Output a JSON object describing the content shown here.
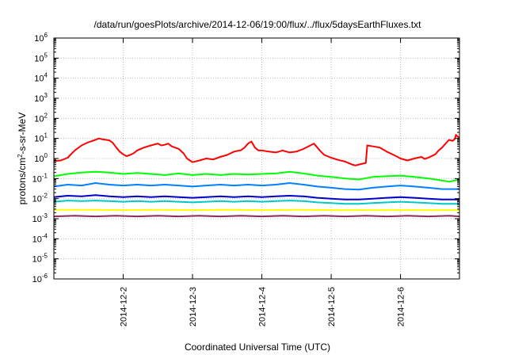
{
  "chart_data": {
    "type": "line",
    "title": "/data/run/goesPlots/archive/2014-12-06/19:00/flux/../flux/5daysEarthFluxes.txt",
    "xlabel": "Coordinated Universal Time (UTC)",
    "ylabel": {
      "prefix": "protons/cm",
      "sup": "2",
      "suffix": "-s-sr-MeV"
    },
    "y_scale": "log",
    "ylim": [
      1e-06,
      1000000.0
    ],
    "y_ticks": [
      {
        "base": "10",
        "exp": "-6"
      },
      {
        "base": "10",
        "exp": "-5"
      },
      {
        "base": "10",
        "exp": "-4"
      },
      {
        "base": "10",
        "exp": "-3"
      },
      {
        "base": "10",
        "exp": "-2"
      },
      {
        "base": "10",
        "exp": "-1"
      },
      {
        "base": "10",
        "exp": "0"
      },
      {
        "base": "10",
        "exp": "1"
      },
      {
        "base": "10",
        "exp": "2"
      },
      {
        "base": "10",
        "exp": "3"
      },
      {
        "base": "10",
        "exp": "4"
      },
      {
        "base": "10",
        "exp": "5"
      },
      {
        "base": "10",
        "exp": "6"
      }
    ],
    "x_ticks": [
      {
        "label": "2014-12-2",
        "day": 2.0
      },
      {
        "label": "2014-12-3",
        "day": 3.0
      },
      {
        "label": "2014-12-4",
        "day": 4.0
      },
      {
        "label": "2014-12-5",
        "day": 5.0
      },
      {
        "label": "2014-12-6",
        "day": 6.0
      }
    ],
    "xlim_day": [
      1.0,
      6.85
    ],
    "grid": true,
    "series": [
      {
        "color": "#ff0000",
        "points": [
          [
            1.0,
            0.75
          ],
          [
            1.1,
            0.8
          ],
          [
            1.2,
            1.1
          ],
          [
            1.3,
            2.5
          ],
          [
            1.4,
            4.5
          ],
          [
            1.5,
            6.5
          ],
          [
            1.6,
            8.5
          ],
          [
            1.65,
            10
          ],
          [
            1.7,
            9
          ],
          [
            1.8,
            8
          ],
          [
            1.85,
            6
          ],
          [
            1.9,
            3.5
          ],
          [
            1.95,
            2.2
          ],
          [
            2.0,
            1.6
          ],
          [
            2.05,
            1.3
          ],
          [
            2.1,
            1.5
          ],
          [
            2.15,
            1.8
          ],
          [
            2.2,
            2.5
          ],
          [
            2.3,
            3.5
          ],
          [
            2.4,
            4.5
          ],
          [
            2.5,
            5.5
          ],
          [
            2.55,
            4.5
          ],
          [
            2.6,
            4.8
          ],
          [
            2.65,
            5.5
          ],
          [
            2.7,
            4.0
          ],
          [
            2.8,
            3.0
          ],
          [
            2.87,
            1.8
          ],
          [
            2.92,
            1.0
          ],
          [
            3.0,
            0.65
          ],
          [
            3.1,
            0.8
          ],
          [
            3.2,
            1.0
          ],
          [
            3.3,
            0.9
          ],
          [
            3.4,
            1.2
          ],
          [
            3.5,
            1.5
          ],
          [
            3.6,
            2.2
          ],
          [
            3.7,
            2.6
          ],
          [
            3.75,
            3.5
          ],
          [
            3.8,
            5.5
          ],
          [
            3.85,
            7.0
          ],
          [
            3.9,
            3.5
          ],
          [
            3.95,
            2.5
          ],
          [
            4.0,
            2.5
          ],
          [
            4.1,
            2.2
          ],
          [
            4.2,
            2.0
          ],
          [
            4.3,
            2.5
          ],
          [
            4.4,
            2.0
          ],
          [
            4.5,
            2.2
          ],
          [
            4.6,
            3.0
          ],
          [
            4.7,
            4.5
          ],
          [
            4.75,
            5.5
          ],
          [
            4.8,
            3.5
          ],
          [
            4.85,
            2.2
          ],
          [
            4.9,
            1.5
          ],
          [
            5.0,
            1.1
          ],
          [
            5.1,
            0.85
          ],
          [
            5.2,
            0.7
          ],
          [
            5.3,
            0.5
          ],
          [
            5.35,
            0.45
          ],
          [
            5.4,
            0.5
          ],
          [
            5.45,
            0.55
          ],
          [
            5.5,
            0.6
          ],
          [
            5.52,
            4.5
          ],
          [
            5.6,
            4.0
          ],
          [
            5.7,
            3.5
          ],
          [
            5.8,
            2.2
          ],
          [
            5.9,
            1.5
          ],
          [
            6.0,
            1.0
          ],
          [
            6.1,
            0.8
          ],
          [
            6.2,
            1.0
          ],
          [
            6.3,
            1.2
          ],
          [
            6.35,
            0.95
          ],
          [
            6.4,
            1.1
          ],
          [
            6.5,
            1.6
          ],
          [
            6.55,
            2.5
          ],
          [
            6.6,
            3.5
          ],
          [
            6.65,
            5.5
          ],
          [
            6.7,
            8.5
          ],
          [
            6.75,
            7.5
          ],
          [
            6.78,
            9
          ],
          [
            6.8,
            15
          ],
          [
            6.83,
            12
          ],
          [
            6.85,
            10
          ]
        ]
      },
      {
        "color": "#00ff00",
        "points": [
          [
            1.0,
            0.13
          ],
          [
            1.2,
            0.17
          ],
          [
            1.4,
            0.2
          ],
          [
            1.6,
            0.22
          ],
          [
            1.8,
            0.2
          ],
          [
            2.0,
            0.17
          ],
          [
            2.2,
            0.19
          ],
          [
            2.4,
            0.17
          ],
          [
            2.6,
            0.15
          ],
          [
            2.8,
            0.18
          ],
          [
            3.0,
            0.15
          ],
          [
            3.2,
            0.17
          ],
          [
            3.4,
            0.15
          ],
          [
            3.6,
            0.17
          ],
          [
            3.8,
            0.16
          ],
          [
            4.0,
            0.17
          ],
          [
            4.2,
            0.18
          ],
          [
            4.4,
            0.22
          ],
          [
            4.6,
            0.18
          ],
          [
            4.8,
            0.14
          ],
          [
            5.0,
            0.12
          ],
          [
            5.2,
            0.1
          ],
          [
            5.4,
            0.09
          ],
          [
            5.6,
            0.12
          ],
          [
            5.8,
            0.13
          ],
          [
            6.0,
            0.14
          ],
          [
            6.2,
            0.12
          ],
          [
            6.4,
            0.1
          ],
          [
            6.6,
            0.08
          ],
          [
            6.7,
            0.07
          ],
          [
            6.85,
            0.09
          ]
        ]
      },
      {
        "color": "#0080ff",
        "points": [
          [
            1.0,
            0.04
          ],
          [
            1.2,
            0.05
          ],
          [
            1.4,
            0.045
          ],
          [
            1.6,
            0.06
          ],
          [
            1.8,
            0.05
          ],
          [
            2.0,
            0.045
          ],
          [
            2.2,
            0.05
          ],
          [
            2.4,
            0.045
          ],
          [
            2.6,
            0.05
          ],
          [
            2.8,
            0.045
          ],
          [
            3.0,
            0.04
          ],
          [
            3.2,
            0.045
          ],
          [
            3.4,
            0.05
          ],
          [
            3.6,
            0.045
          ],
          [
            3.8,
            0.05
          ],
          [
            4.0,
            0.045
          ],
          [
            4.2,
            0.05
          ],
          [
            4.4,
            0.06
          ],
          [
            4.6,
            0.05
          ],
          [
            4.8,
            0.04
          ],
          [
            5.0,
            0.035
          ],
          [
            5.2,
            0.03
          ],
          [
            5.4,
            0.028
          ],
          [
            5.6,
            0.035
          ],
          [
            5.8,
            0.04
          ],
          [
            6.0,
            0.045
          ],
          [
            6.2,
            0.04
          ],
          [
            6.4,
            0.035
          ],
          [
            6.6,
            0.03
          ],
          [
            6.85,
            0.03
          ]
        ]
      },
      {
        "color": "#0000c8",
        "points": [
          [
            1.0,
            0.012
          ],
          [
            1.2,
            0.014
          ],
          [
            1.4,
            0.013
          ],
          [
            1.6,
            0.015
          ],
          [
            1.8,
            0.013
          ],
          [
            2.0,
            0.012
          ],
          [
            2.2,
            0.013
          ],
          [
            2.4,
            0.012
          ],
          [
            2.6,
            0.013
          ],
          [
            2.8,
            0.012
          ],
          [
            3.0,
            0.011
          ],
          [
            3.2,
            0.012
          ],
          [
            3.4,
            0.013
          ],
          [
            3.6,
            0.012
          ],
          [
            3.8,
            0.013
          ],
          [
            4.0,
            0.012
          ],
          [
            4.2,
            0.013
          ],
          [
            4.4,
            0.014
          ],
          [
            4.6,
            0.013
          ],
          [
            4.8,
            0.011
          ],
          [
            5.0,
            0.01
          ],
          [
            5.2,
            0.009
          ],
          [
            5.4,
            0.009
          ],
          [
            5.6,
            0.01
          ],
          [
            5.8,
            0.011
          ],
          [
            6.0,
            0.012
          ],
          [
            6.2,
            0.011
          ],
          [
            6.4,
            0.01
          ],
          [
            6.6,
            0.009
          ],
          [
            6.85,
            0.009
          ]
        ]
      },
      {
        "color": "#00c8c8",
        "points": [
          [
            1.0,
            0.007
          ],
          [
            1.2,
            0.008
          ],
          [
            1.4,
            0.0075
          ],
          [
            1.6,
            0.008
          ],
          [
            1.8,
            0.0075
          ],
          [
            2.0,
            0.007
          ],
          [
            2.2,
            0.0075
          ],
          [
            2.4,
            0.007
          ],
          [
            2.6,
            0.0075
          ],
          [
            2.8,
            0.007
          ],
          [
            3.0,
            0.0065
          ],
          [
            3.2,
            0.007
          ],
          [
            3.4,
            0.0075
          ],
          [
            3.6,
            0.007
          ],
          [
            3.8,
            0.0075
          ],
          [
            4.0,
            0.007
          ],
          [
            4.2,
            0.0075
          ],
          [
            4.4,
            0.008
          ],
          [
            4.6,
            0.0075
          ],
          [
            4.8,
            0.0065
          ],
          [
            5.0,
            0.006
          ],
          [
            5.2,
            0.0055
          ],
          [
            5.4,
            0.0055
          ],
          [
            5.6,
            0.006
          ],
          [
            5.8,
            0.0065
          ],
          [
            6.0,
            0.007
          ],
          [
            6.2,
            0.0065
          ],
          [
            6.4,
            0.006
          ],
          [
            6.6,
            0.0055
          ],
          [
            6.85,
            0.0055
          ]
        ]
      },
      {
        "color": "#ffff00",
        "points": [
          [
            1.0,
            0.0028
          ],
          [
            1.5,
            0.0028
          ],
          [
            2.0,
            0.0027
          ],
          [
            2.5,
            0.0028
          ],
          [
            3.0,
            0.0027
          ],
          [
            3.5,
            0.0028
          ],
          [
            4.0,
            0.0027
          ],
          [
            4.5,
            0.0028
          ],
          [
            5.0,
            0.0027
          ],
          [
            5.5,
            0.0027
          ],
          [
            6.0,
            0.0027
          ],
          [
            6.5,
            0.0027
          ],
          [
            6.85,
            0.0027
          ]
        ]
      },
      {
        "color": "#8b2a5a",
        "points": [
          [
            1.0,
            0.0013
          ],
          [
            1.3,
            0.0014
          ],
          [
            1.6,
            0.0013
          ],
          [
            1.9,
            0.0014
          ],
          [
            2.2,
            0.0013
          ],
          [
            2.5,
            0.0014
          ],
          [
            2.8,
            0.0013
          ],
          [
            3.1,
            0.0014
          ],
          [
            3.4,
            0.0013
          ],
          [
            3.7,
            0.0014
          ],
          [
            4.0,
            0.0013
          ],
          [
            4.3,
            0.0014
          ],
          [
            4.6,
            0.0013
          ],
          [
            4.9,
            0.0014
          ],
          [
            5.2,
            0.0013
          ],
          [
            5.5,
            0.0014
          ],
          [
            5.8,
            0.0013
          ],
          [
            6.1,
            0.0014
          ],
          [
            6.4,
            0.0013
          ],
          [
            6.7,
            0.0014
          ],
          [
            6.85,
            0.0013
          ]
        ]
      }
    ]
  }
}
